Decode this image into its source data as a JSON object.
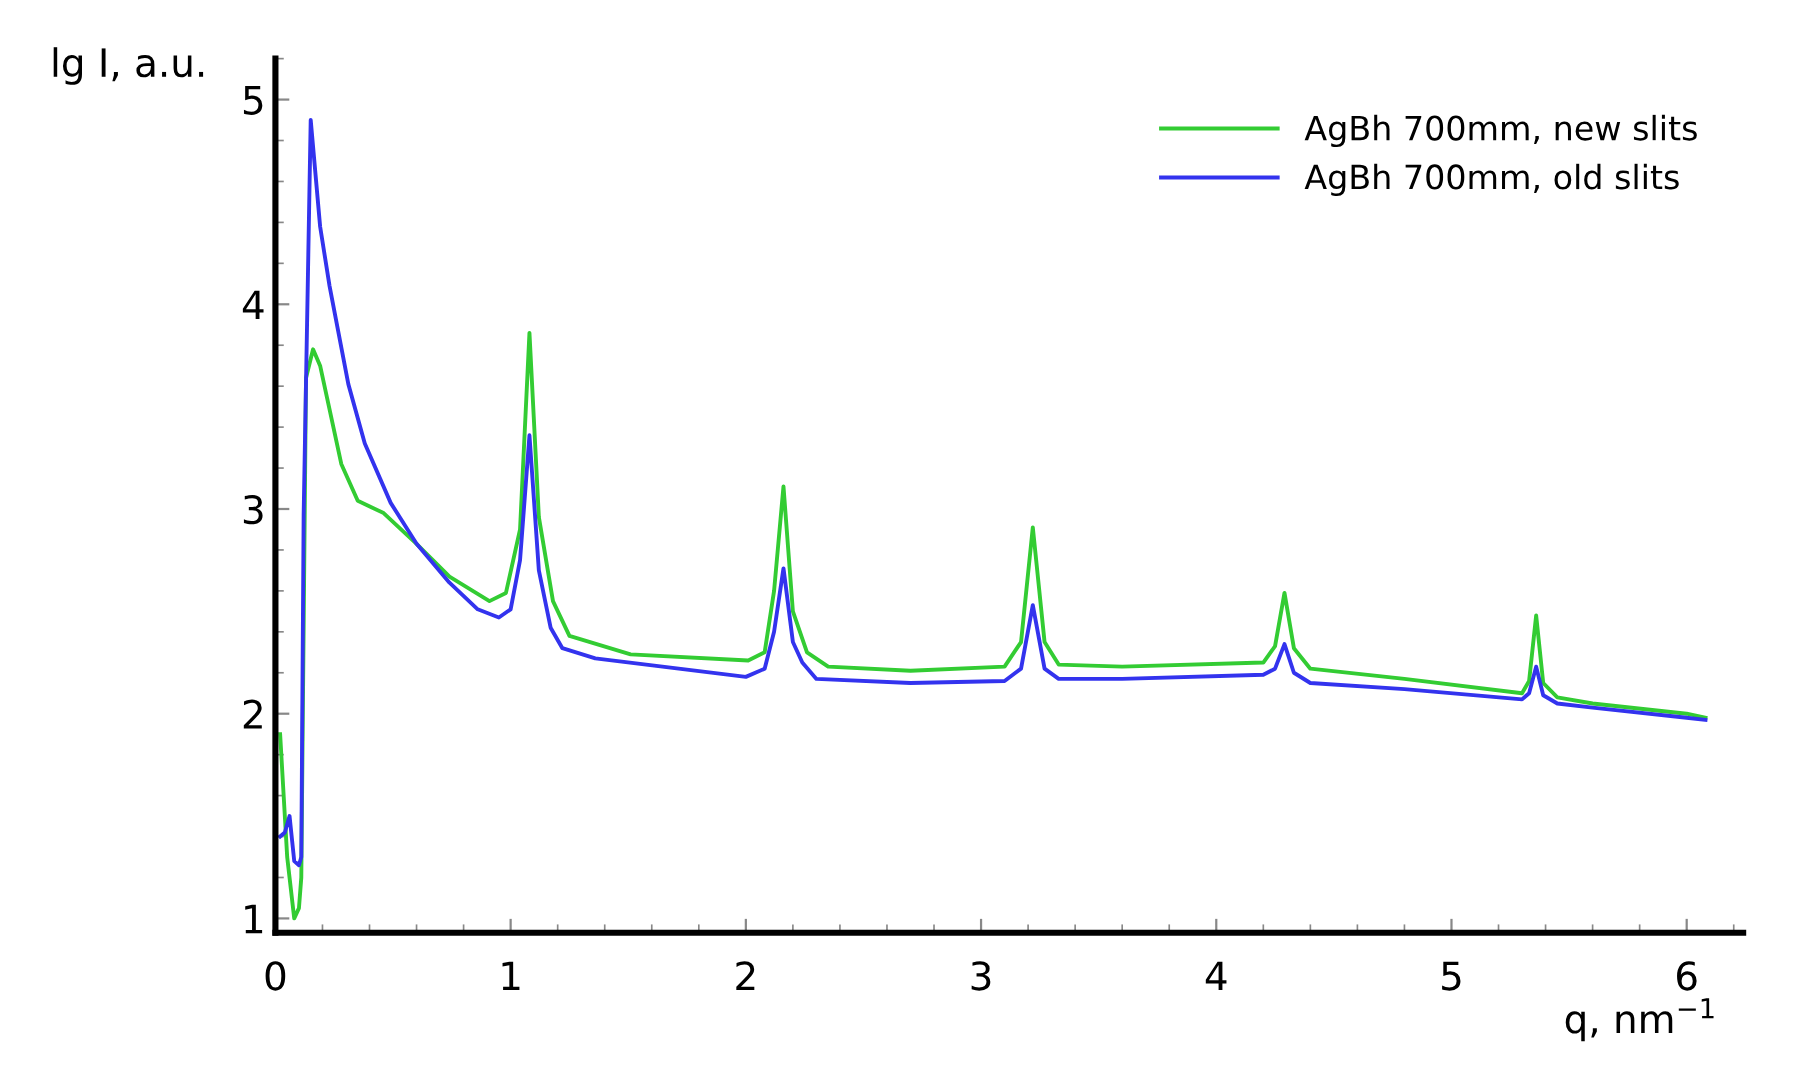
{
  "chart_data": {
    "type": "line",
    "xlabel": "q, nm$^{−1}$",
    "ylabel": "lg I, a.u.",
    "xlim": [
      0,
      6.24
    ],
    "ylim": [
      0.93,
      5.2
    ],
    "xticks": [
      0,
      1,
      2,
      3,
      4,
      5,
      6
    ],
    "yticks": [
      1,
      2,
      3,
      4,
      5
    ],
    "grid": false,
    "legend": "top right",
    "marker": "none",
    "line_style": "solid",
    "series": [
      {
        "name": "AgBh 700mm, new slits",
        "color": "#33cc33",
        "x": [
          0.02,
          0.05,
          0.08,
          0.1,
          0.11,
          0.13,
          0.16,
          0.19,
          0.22,
          0.28,
          0.35,
          0.46,
          0.6,
          0.74,
          0.91,
          0.98,
          1.04,
          1.08,
          1.12,
          1.18,
          1.25,
          1.51,
          2.01,
          2.08,
          2.12,
          2.16,
          2.2,
          2.26,
          2.35,
          2.7,
          3.1,
          3.17,
          3.22,
          3.27,
          3.33,
          3.6,
          4.2,
          4.25,
          4.29,
          4.33,
          4.4,
          4.8,
          5.3,
          5.33,
          5.36,
          5.39,
          5.45,
          5.6,
          6.0,
          6.08
        ],
        "values": [
          1.9,
          1.3,
          1.0,
          1.05,
          1.2,
          3.64,
          3.78,
          3.7,
          3.54,
          3.22,
          3.04,
          2.98,
          2.83,
          2.67,
          2.55,
          2.59,
          2.9,
          3.86,
          2.96,
          2.55,
          2.38,
          2.29,
          2.26,
          2.3,
          2.6,
          3.11,
          2.5,
          2.3,
          2.23,
          2.21,
          2.23,
          2.35,
          2.91,
          2.35,
          2.24,
          2.23,
          2.25,
          2.33,
          2.59,
          2.32,
          2.22,
          2.17,
          2.1,
          2.16,
          2.48,
          2.15,
          2.08,
          2.05,
          2.0,
          1.98
        ]
      },
      {
        "name": "AgBh 700mm, old slits",
        "color": "#3333ee",
        "x": [
          0.02,
          0.04,
          0.06,
          0.08,
          0.1,
          0.11,
          0.12,
          0.15,
          0.19,
          0.23,
          0.31,
          0.38,
          0.49,
          0.6,
          0.74,
          0.86,
          0.95,
          1.0,
          1.04,
          1.08,
          1.12,
          1.17,
          1.22,
          1.36,
          2.0,
          2.08,
          2.12,
          2.16,
          2.2,
          2.24,
          2.3,
          2.7,
          3.1,
          3.17,
          3.22,
          3.27,
          3.33,
          3.6,
          4.2,
          4.25,
          4.29,
          4.33,
          4.4,
          4.8,
          5.3,
          5.33,
          5.36,
          5.39,
          5.45,
          5.6,
          6.0,
          6.08
        ],
        "values": [
          1.4,
          1.42,
          1.5,
          1.28,
          1.26,
          1.3,
          2.97,
          4.9,
          4.38,
          4.09,
          3.61,
          3.32,
          3.03,
          2.83,
          2.64,
          2.51,
          2.47,
          2.51,
          2.75,
          3.36,
          2.7,
          2.42,
          2.32,
          2.27,
          2.18,
          2.22,
          2.4,
          2.71,
          2.35,
          2.25,
          2.17,
          2.15,
          2.16,
          2.22,
          2.53,
          2.22,
          2.17,
          2.17,
          2.19,
          2.22,
          2.34,
          2.2,
          2.15,
          2.12,
          2.07,
          2.1,
          2.23,
          2.09,
          2.05,
          2.03,
          1.98,
          1.97
        ]
      }
    ]
  }
}
